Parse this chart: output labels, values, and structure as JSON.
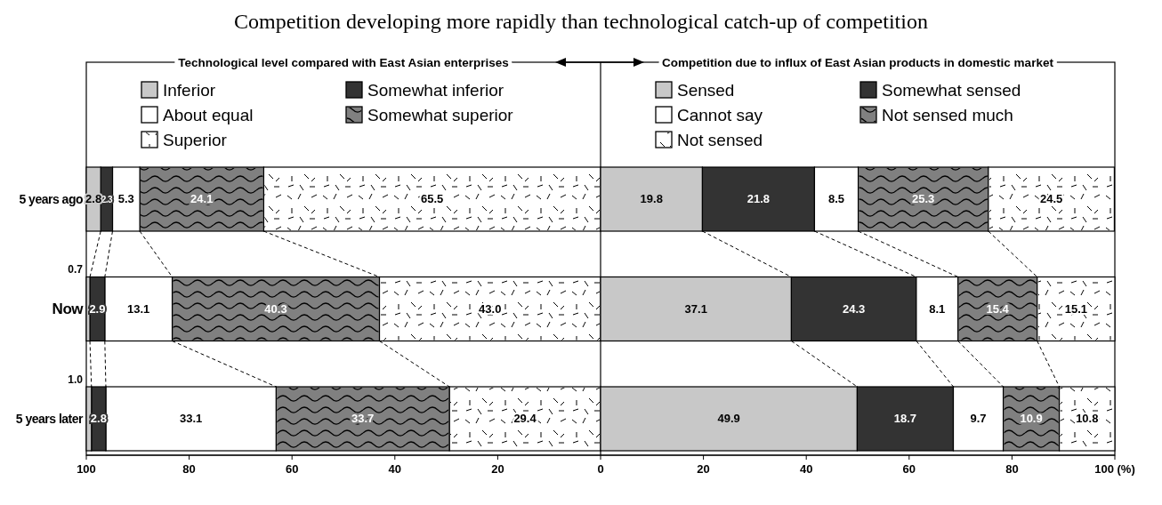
{
  "chart_data": [
    {
      "type": "bar",
      "orientation": "horizontal",
      "stacked": true,
      "title": "Competition developing more rapidly than technological catch-up of competition",
      "subtitle": "Technological level compared with East Asian enterprises",
      "categories": [
        "5 years ago",
        "Now",
        "5 years later"
      ],
      "xlim": [
        100,
        0
      ],
      "xticks": [
        100,
        80,
        60,
        40,
        20
      ],
      "legend": "top",
      "series": [
        {
          "name": "Superior",
          "color": "#ffffff",
          "values": [
            65.5,
            43.0,
            29.4
          ],
          "value_labels": [
            "65.5",
            "43.0",
            "29.4"
          ]
        },
        {
          "name": "Somewhat superior",
          "color": "#808080",
          "values": [
            24.1,
            40.3,
            33.7
          ],
          "value_labels": [
            "24.1",
            "40.3",
            "33.7"
          ]
        },
        {
          "name": "About equal",
          "color": "#ffffff",
          "values": [
            5.3,
            13.1,
            33.1
          ],
          "value_labels": [
            "5.3",
            "13.1",
            "33.1"
          ]
        },
        {
          "name": "Somewhat inferior",
          "color": "#333333",
          "values": [
            2.3,
            2.9,
            2.8
          ],
          "value_labels": [
            "2.3",
            "2.9",
            "2.8"
          ]
        },
        {
          "name": "Inferior",
          "color": "#c8c8c8",
          "values": [
            2.8,
            0.7,
            1.0
          ],
          "value_labels": [
            "2.8",
            "0.7",
            "1.0"
          ]
        }
      ]
    },
    {
      "type": "bar",
      "orientation": "horizontal",
      "stacked": true,
      "subtitle": "Competition due to influx of East Asian products in domestic market",
      "categories": [
        null,
        null,
        null
      ],
      "xlim": [
        0,
        100
      ],
      "xticks": [
        0,
        20,
        40,
        60,
        80,
        {
          "value": 100,
          "label": "100 (%)"
        }
      ],
      "legend": "top",
      "tick_labels": "x",
      "series": [
        {
          "name": "Sensed",
          "color": "#c8c8c8",
          "values": [
            19.8,
            37.1,
            49.9
          ],
          "value_labels": [
            "19.8",
            "37.1",
            "49.9"
          ]
        },
        {
          "name": "Somewhat sensed",
          "color": "#333333",
          "values": [
            21.8,
            24.3,
            18.7
          ],
          "value_labels": [
            "21.8",
            "24.3",
            "18.7"
          ]
        },
        {
          "name": "Cannot say",
          "color": "#ffffff",
          "values": [
            8.5,
            8.1,
            9.7
          ],
          "value_labels": [
            "8.5",
            "8.1",
            "9.7"
          ]
        },
        {
          "name": "Not sensed much",
          "color": "#808080",
          "values": [
            25.3,
            15.4,
            10.9
          ],
          "value_labels": [
            "25.3",
            "15.4",
            "10.9"
          ]
        },
        {
          "name": "Not sensed",
          "color": "#ffffff",
          "values": [
            24.5,
            15.1,
            10.8
          ],
          "value_labels": [
            "24.5",
            "15.1",
            "10.8"
          ]
        }
      ]
    }
  ]
}
